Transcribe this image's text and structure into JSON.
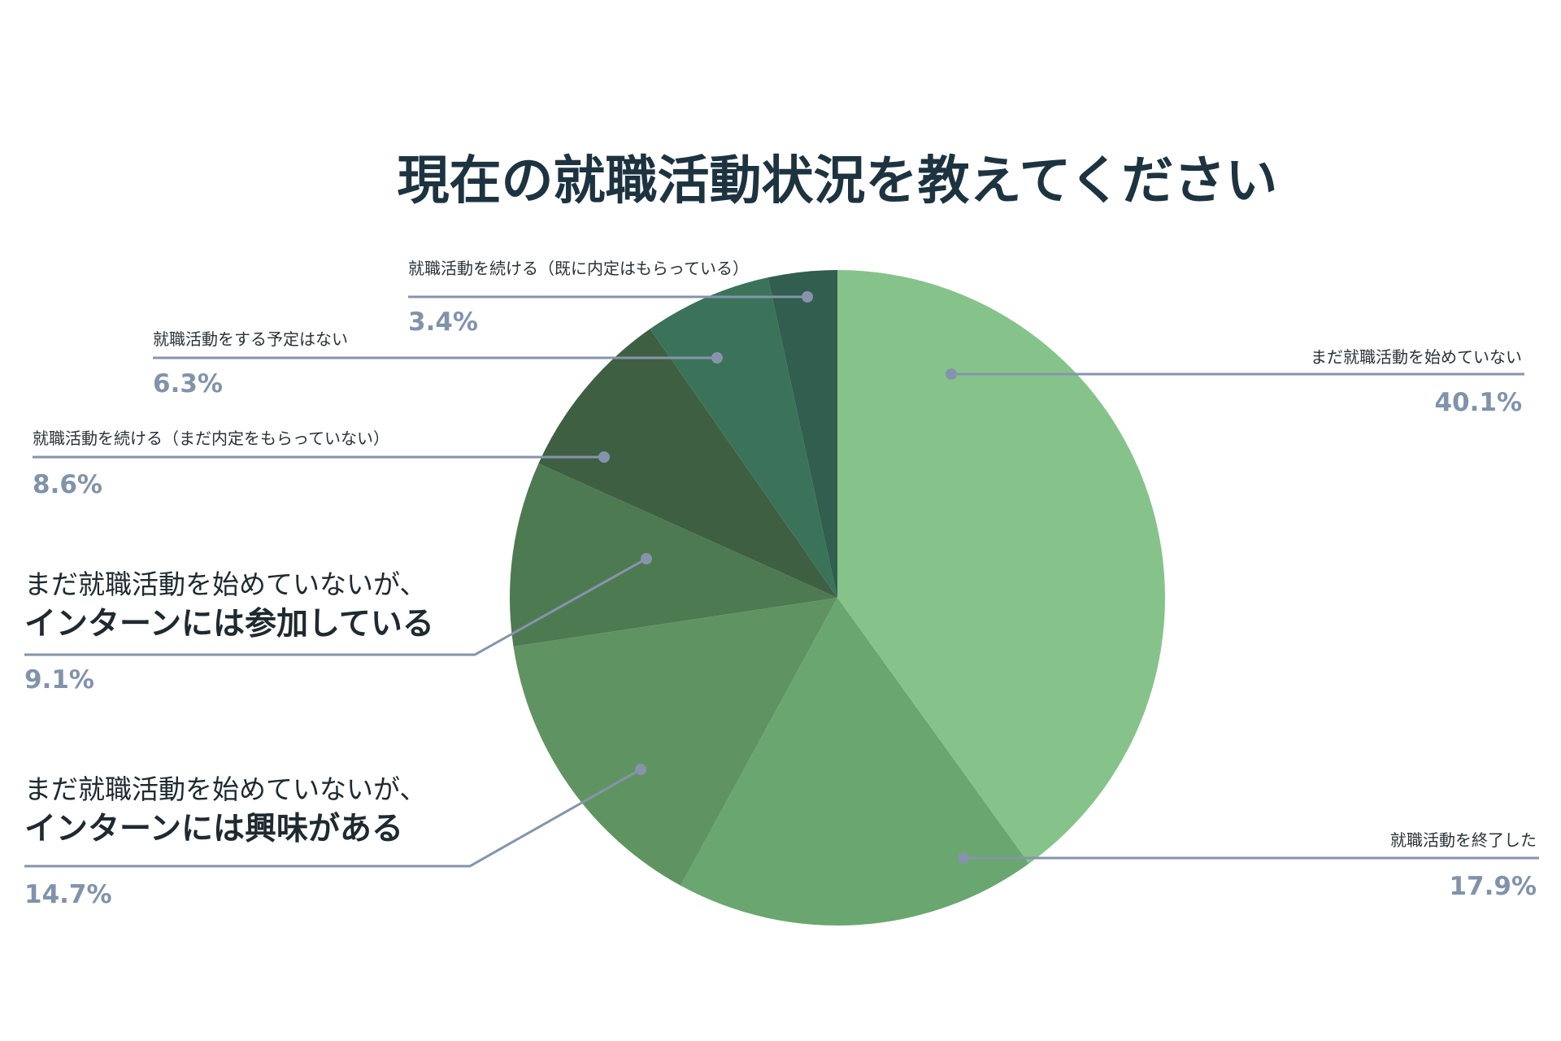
{
  "chart_data": {
    "type": "pie",
    "title": "現在の就職活動状況を教えてください",
    "start_angle_deg": 0,
    "direction": "clockwise",
    "slices": [
      {
        "label": [
          "まだ就職活動を始めていない"
        ],
        "value": 40.1,
        "value_label": "40.1%",
        "color": "#86c38b"
      },
      {
        "label": [
          "就職活動を終了した"
        ],
        "value": 17.9,
        "value_label": "17.9%",
        "color": "#6aa66f"
      },
      {
        "label": [
          "まだ就職活動を始めていないが、",
          "インターンには興味がある"
        ],
        "value": 14.7,
        "value_label": "14.7%",
        "color": "#5f9462"
      },
      {
        "label": [
          "まだ就職活動を始めていないが、",
          "インターンには参加している"
        ],
        "value": 9.1,
        "value_label": "9.1%",
        "color": "#4e7a52"
      },
      {
        "label": [
          "就職活動を続ける（まだ内定をもらっていない）"
        ],
        "value": 8.6,
        "value_label": "8.6%",
        "color": "#3f5f42"
      },
      {
        "label": [
          "就職活動をする予定はない"
        ],
        "value": 6.3,
        "value_label": "6.3%",
        "color": "#3a7359"
      },
      {
        "label": [
          "就職活動を続ける（既に内定はもらっている）"
        ],
        "value": 3.4,
        "value_label": "3.4%",
        "color": "#315e4f"
      }
    ]
  }
}
